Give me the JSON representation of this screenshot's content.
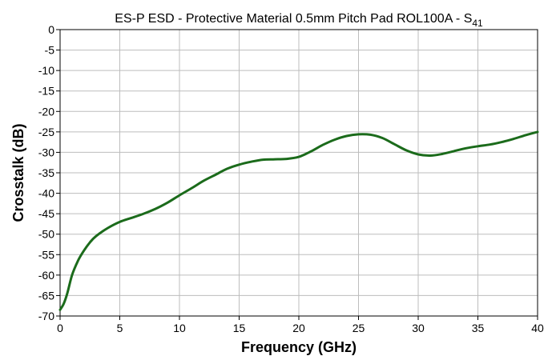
{
  "chart_data": {
    "type": "line",
    "title": "ES-P ESD - Protective Material 0.5mm Pitch Pad ROL100A - S",
    "title_subscript": "41",
    "xlabel": "Frequency (GHz)",
    "ylabel": "Crosstalk (dB)",
    "xlim": [
      0,
      40
    ],
    "ylim": [
      -70,
      0
    ],
    "xticks": [
      0,
      5,
      10,
      15,
      20,
      25,
      30,
      35,
      40
    ],
    "yticks": [
      0,
      -5,
      -10,
      -15,
      -20,
      -25,
      -30,
      -35,
      -40,
      -45,
      -50,
      -55,
      -60,
      -65,
      -70
    ],
    "grid": true,
    "series": [
      {
        "color": "#1b6b1b",
        "x": [
          0,
          0.3,
          0.6,
          1,
          1.5,
          2,
          2.5,
          3,
          4,
          5,
          6,
          7,
          8,
          9,
          10,
          11,
          12,
          13,
          14,
          15,
          16,
          17,
          18,
          19,
          20,
          21,
          22,
          23,
          24,
          25,
          26,
          27,
          28,
          29,
          30,
          31,
          32,
          33,
          34,
          35,
          36,
          37,
          38,
          39,
          40
        ],
        "y": [
          -68.5,
          -67,
          -64.5,
          -60,
          -56.5,
          -54,
          -52,
          -50.5,
          -48.5,
          -47,
          -46,
          -45,
          -43.8,
          -42.3,
          -40.5,
          -38.8,
          -37,
          -35.5,
          -34,
          -33,
          -32.3,
          -31.8,
          -31.7,
          -31.6,
          -31.1,
          -29.8,
          -28.2,
          -26.9,
          -26,
          -25.6,
          -25.7,
          -26.5,
          -28,
          -29.5,
          -30.5,
          -30.8,
          -30.4,
          -29.7,
          -29,
          -28.5,
          -28.1,
          -27.5,
          -26.7,
          -25.8,
          -25
        ]
      }
    ]
  }
}
